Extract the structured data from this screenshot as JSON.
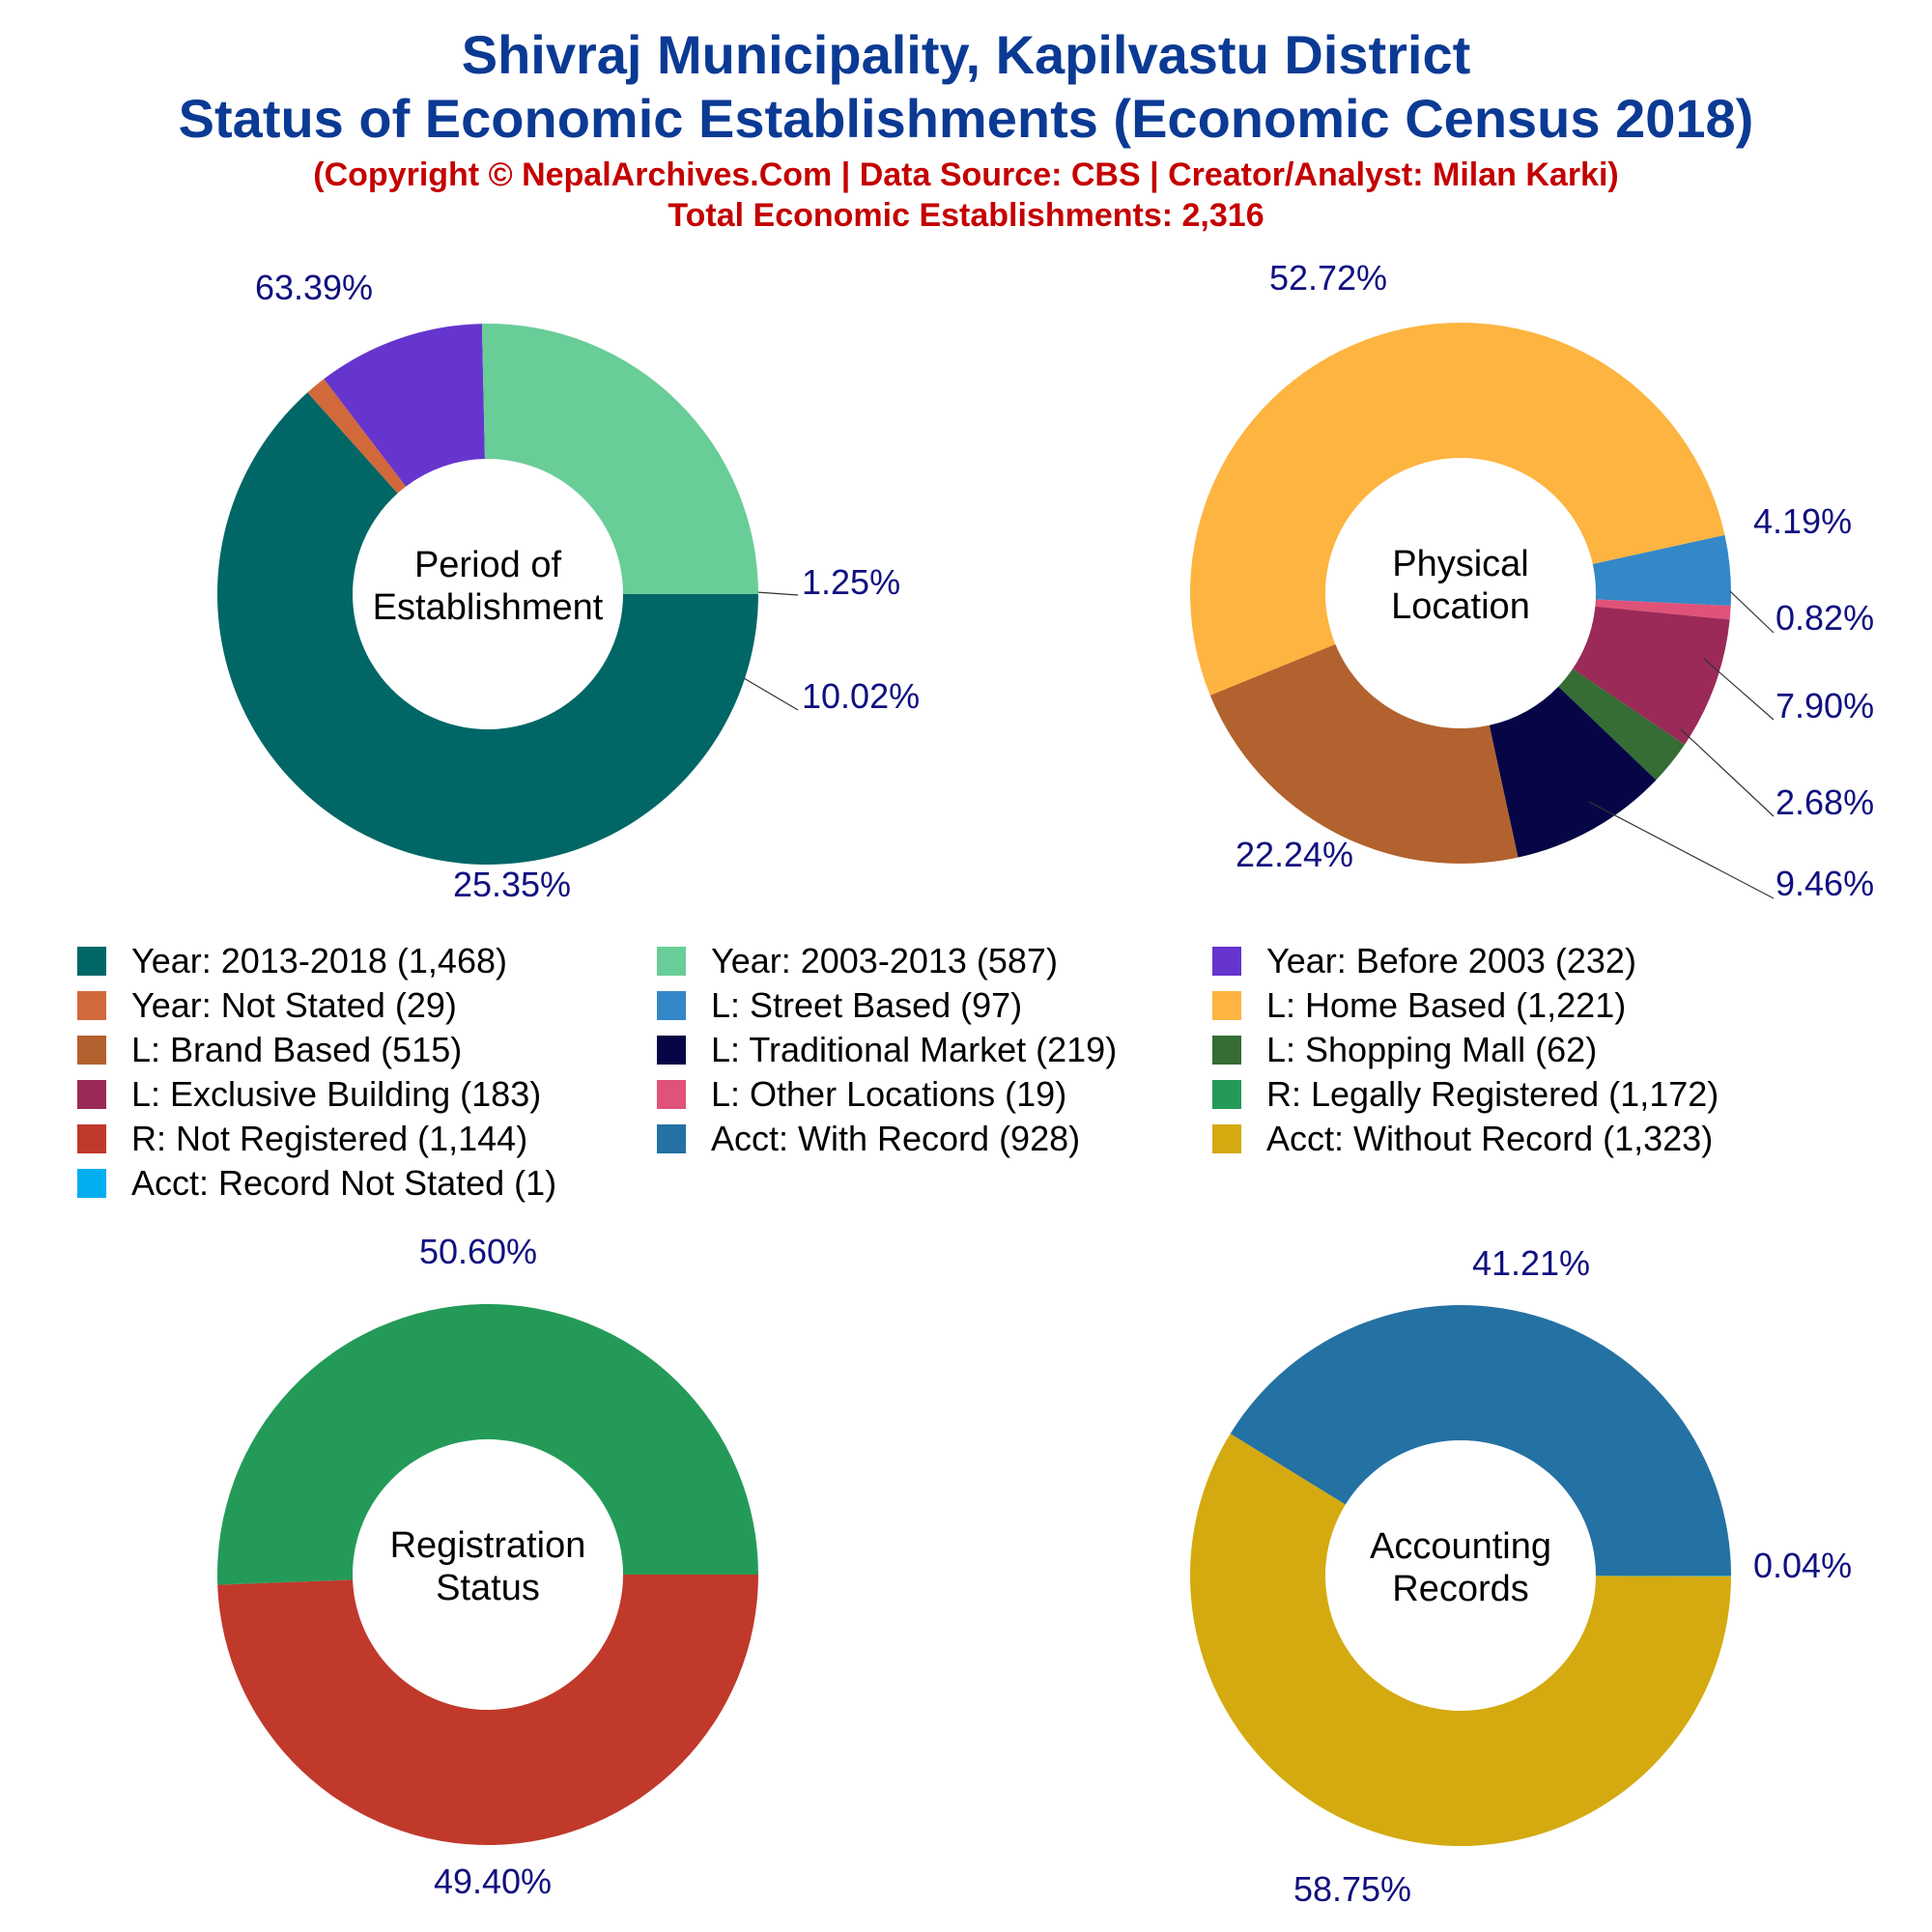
{
  "title_line1": "Shivraj Municipality, Kapilvastu District",
  "title_line2": "Status of Economic Establishments (Economic Census 2018)",
  "subtitle_line1": "(Copyright © NepalArchives.Com | Data Source: CBS | Creator/Analyst: Milan Karki)",
  "subtitle_line2": "Total Economic Establishments: 2,316",
  "colors": {
    "title": "#0b3a94",
    "subtitle": "#c40000",
    "percent_label": "#101080"
  },
  "chart_data": [
    {
      "type": "pie",
      "center_label": [
        "Period of",
        "Establishment"
      ],
      "slices": [
        {
          "label": "Year: 2013-2018",
          "value": 1468,
          "percent": "63.39%",
          "color": "#006766"
        },
        {
          "label": "Year: Not Stated",
          "value": 29,
          "percent": "1.25%",
          "color": "#d2693a"
        },
        {
          "label": "Year: Before 2003",
          "value": 232,
          "percent": "10.02%",
          "color": "#6535cd"
        },
        {
          "label": "Year: 2003-2013",
          "value": 587,
          "percent": "25.35%",
          "color": "#69cd98"
        }
      ]
    },
    {
      "type": "pie",
      "center_label": [
        "Physical",
        "Location"
      ],
      "slices": [
        {
          "label": "L: Street Based",
          "value": 97,
          "percent": "4.19%",
          "color": "#3488c7"
        },
        {
          "label": "L: Other Locations",
          "value": 19,
          "percent": "0.82%",
          "color": "#e05278"
        },
        {
          "label": "L: Exclusive Building",
          "value": 183,
          "percent": "7.90%",
          "color": "#9b2a58"
        },
        {
          "label": "L: Shopping Mall",
          "value": 62,
          "percent": "2.68%",
          "color": "#356d35"
        },
        {
          "label": "L: Traditional Market",
          "value": 219,
          "percent": "9.46%",
          "color": "#060646"
        },
        {
          "label": "L: Brand Based",
          "value": 515,
          "percent": "22.24%",
          "color": "#b2622e"
        },
        {
          "label": "L: Home Based",
          "value": 1221,
          "percent": "52.72%",
          "color": "#fdb440"
        }
      ]
    },
    {
      "type": "pie",
      "center_label": [
        "Registration",
        "Status"
      ],
      "slices": [
        {
          "label": "R: Not Registered",
          "value": 1144,
          "percent": "49.40%",
          "color": "#c0392b"
        },
        {
          "label": "R: Legally Registered",
          "value": 1172,
          "percent": "50.60%",
          "color": "#249a59"
        }
      ]
    },
    {
      "type": "pie",
      "center_label": [
        "Accounting",
        "Records"
      ],
      "slices": [
        {
          "label": "Acct: Record Not Stated",
          "value": 1,
          "percent": "0.04%",
          "color": "#00aeef"
        },
        {
          "label": "Acct: Without Record",
          "value": 1323,
          "percent": "58.75%",
          "color": "#d4aa10"
        },
        {
          "label": "Acct: With Record",
          "value": 928,
          "percent": "41.21%",
          "color": "#2471a3"
        }
      ]
    }
  ],
  "legend": [
    {
      "label": "Year: 2013-2018 (1,468)",
      "color": "#006766"
    },
    {
      "label": "Year: 2003-2013 (587)",
      "color": "#69cd98"
    },
    {
      "label": "Year: Before 2003 (232)",
      "color": "#6535cd"
    },
    {
      "label": "Year: Not Stated (29)",
      "color": "#d2693a"
    },
    {
      "label": "L: Street Based (97)",
      "color": "#3488c7"
    },
    {
      "label": "L: Home Based (1,221)",
      "color": "#fdb440"
    },
    {
      "label": "L: Brand Based (515)",
      "color": "#b2622e"
    },
    {
      "label": "L: Traditional Market (219)",
      "color": "#060646"
    },
    {
      "label": "L: Shopping Mall (62)",
      "color": "#356d35"
    },
    {
      "label": "L: Exclusive Building (183)",
      "color": "#9b2a58"
    },
    {
      "label": "L: Other Locations (19)",
      "color": "#e05278"
    },
    {
      "label": "R: Legally Registered (1,172)",
      "color": "#249a59"
    },
    {
      "label": "R: Not Registered (1,144)",
      "color": "#c0392b"
    },
    {
      "label": "Acct: With Record (928)",
      "color": "#2471a3"
    },
    {
      "label": "Acct: Without Record (1,323)",
      "color": "#d4aa10"
    },
    {
      "label": "Acct: Record Not Stated (1)",
      "color": "#00aeef"
    }
  ]
}
